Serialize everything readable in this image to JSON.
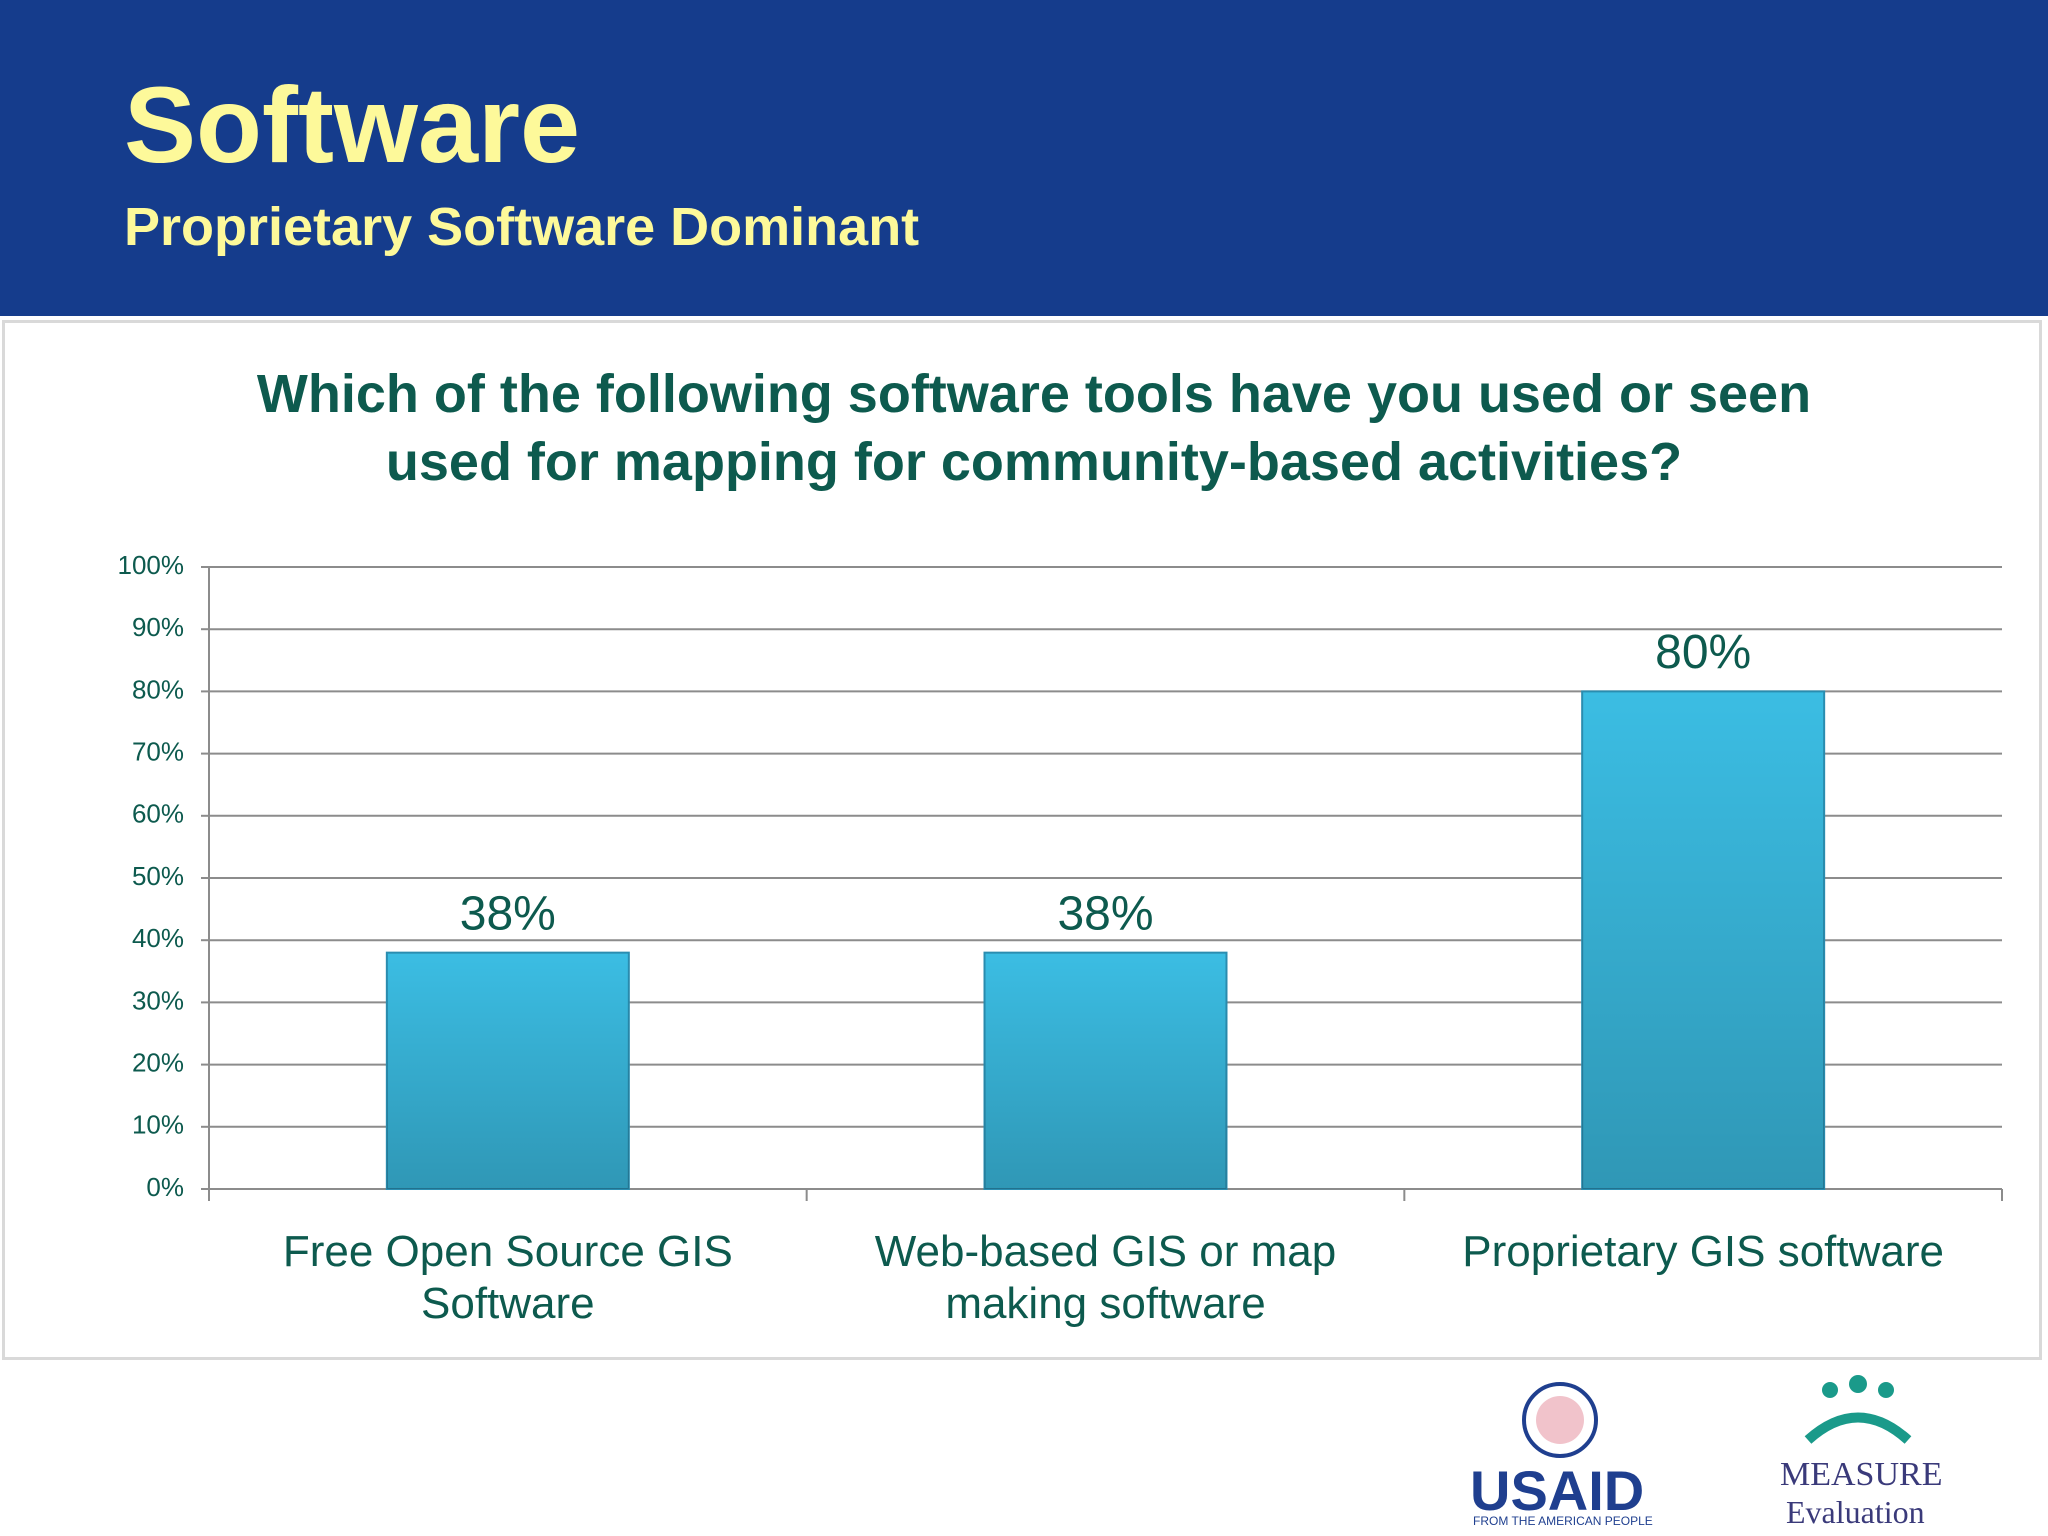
{
  "header": {
    "title": "Software",
    "subtitle": "Proprietary Software Dominant"
  },
  "chart_data": {
    "type": "bar",
    "title": "Which of the following software tools have you used or seen used for mapping for community-based activities?",
    "categories": [
      "Free Open Source GIS Software",
      "Web-based GIS or map making software",
      "Proprietary GIS software"
    ],
    "values": [
      38,
      38,
      80
    ],
    "value_labels": [
      "38%",
      "38%",
      "80%"
    ],
    "color": "#3bbde3",
    "ylim": [
      0,
      100
    ],
    "yticks": [
      {
        "value": 0,
        "label": "0%"
      },
      {
        "value": 10,
        "label": "10%"
      },
      {
        "value": 20,
        "label": "20%"
      },
      {
        "value": 30,
        "label": "30%"
      },
      {
        "value": 40,
        "label": "40%"
      },
      {
        "value": 50,
        "label": "50%"
      },
      {
        "value": 60,
        "label": "60%"
      },
      {
        "value": 70,
        "label": "70%"
      },
      {
        "value": 80,
        "label": "80%"
      },
      {
        "value": 90,
        "label": "90%"
      },
      {
        "value": 100,
        "label": "100%"
      }
    ],
    "grid": true
  },
  "footer": {
    "usaid": "USAID",
    "usaid_tagline": "FROM THE AMERICAN PEOPLE",
    "measure": "MEASURE",
    "evaluation": "Evaluation"
  }
}
